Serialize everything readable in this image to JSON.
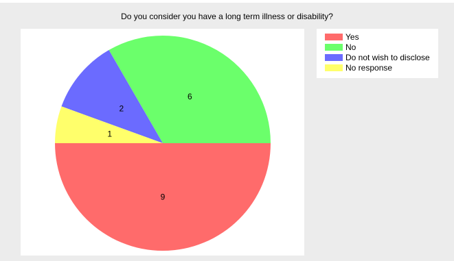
{
  "chart_data": {
    "type": "pie",
    "title": "Do you consider you have a long term illness or disability?",
    "categories": [
      "Yes",
      "No",
      "Do not wish to disclose",
      "No response"
    ],
    "values": [
      9,
      6,
      2,
      1
    ],
    "colors": [
      "#ff6b6b",
      "#6bff6b",
      "#6b6bff",
      "#ffff6b"
    ],
    "legend_position": "top-right"
  }
}
